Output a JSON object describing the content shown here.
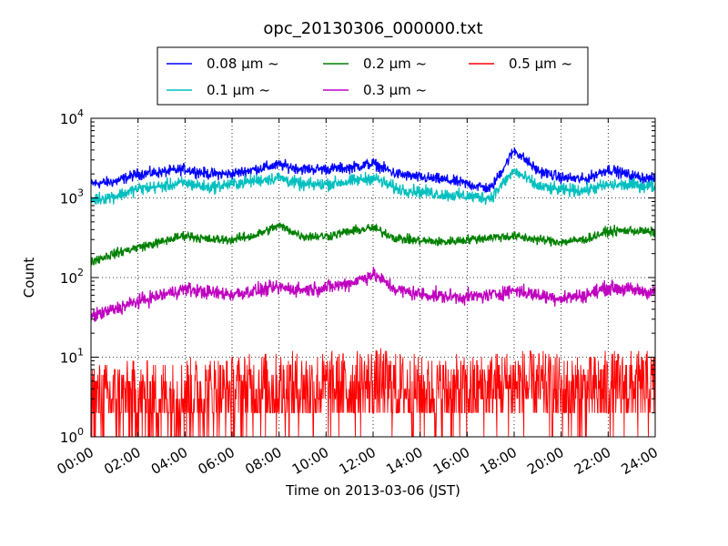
{
  "chart_data": {
    "type": "line",
    "title": "opc_20130306_000000.txt",
    "xlabel": "Time on 2013-03-06 (JST)",
    "ylabel": "Count",
    "yscale": "log",
    "ylim": [
      1,
      10000
    ],
    "xlim": [
      "00:00",
      "24:00"
    ],
    "x_ticks": [
      "00:00",
      "02:00",
      "04:00",
      "06:00",
      "08:00",
      "10:00",
      "12:00",
      "14:00",
      "16:00",
      "18:00",
      "20:00",
      "22:00",
      "24:00"
    ],
    "y_ticks": [
      {
        "value": 1,
        "base": "10",
        "exp": "0"
      },
      {
        "value": 10,
        "base": "10",
        "exp": "1"
      },
      {
        "value": 100,
        "base": "10",
        "exp": "2"
      },
      {
        "value": 1000,
        "base": "10",
        "exp": "3"
      },
      {
        "value": 10000,
        "base": "10",
        "exp": "4"
      }
    ],
    "grid": true,
    "legend_position": "top",
    "x": [
      "00:00",
      "01:00",
      "02:00",
      "03:00",
      "04:00",
      "05:00",
      "06:00",
      "07:00",
      "08:00",
      "09:00",
      "10:00",
      "11:00",
      "12:00",
      "13:00",
      "14:00",
      "15:00",
      "16:00",
      "17:00",
      "18:00",
      "19:00",
      "20:00",
      "21:00",
      "22:00",
      "23:00",
      "24:00"
    ],
    "series": [
      {
        "name": "0.08 μm ~",
        "name_num": "0.08",
        "color": "#0000ff",
        "values": [
          1500,
          1600,
          2000,
          2100,
          2300,
          2000,
          2000,
          2300,
          2600,
          2300,
          2300,
          2400,
          2700,
          2000,
          1800,
          1700,
          1500,
          1300,
          4000,
          2200,
          1800,
          1700,
          2300,
          1900,
          1700
        ],
        "noise": 0.07
      },
      {
        "name": "0.1 μm ~",
        "name_num": "0.1",
        "color": "#00bfbf",
        "values": [
          950,
          1050,
          1300,
          1400,
          1550,
          1350,
          1500,
          1650,
          1800,
          1450,
          1500,
          1600,
          1800,
          1300,
          1200,
          1100,
          1050,
          1000,
          2200,
          1400,
          1250,
          1250,
          1450,
          1450,
          1400
        ],
        "noise": 0.08
      },
      {
        "name": "0.2 μm ~",
        "name_num": "0.2",
        "color": "#008000",
        "values": [
          160,
          200,
          240,
          280,
          340,
          300,
          300,
          340,
          450,
          330,
          330,
          380,
          420,
          310,
          290,
          280,
          300,
          320,
          330,
          300,
          280,
          300,
          380,
          390,
          370
        ],
        "noise": 0.06
      },
      {
        "name": "0.3 μm ~",
        "name_num": "0.3",
        "color": "#bf00bf",
        "values": [
          32,
          40,
          50,
          60,
          72,
          65,
          62,
          68,
          75,
          70,
          75,
          85,
          110,
          70,
          62,
          58,
          57,
          60,
          70,
          60,
          55,
          60,
          75,
          70,
          65
        ],
        "noise": 0.09
      },
      {
        "name": "0.5 μm ~",
        "name_num": "0.5",
        "color": "#ff0000",
        "values": [
          3,
          3,
          3,
          3,
          3.5,
          3.5,
          3.5,
          4,
          4,
          4,
          4,
          4,
          4.5,
          4,
          3.5,
          3.5,
          3.5,
          4,
          4.5,
          4,
          3.5,
          3.5,
          4,
          4,
          4
        ],
        "noise": 0.35
      }
    ]
  }
}
